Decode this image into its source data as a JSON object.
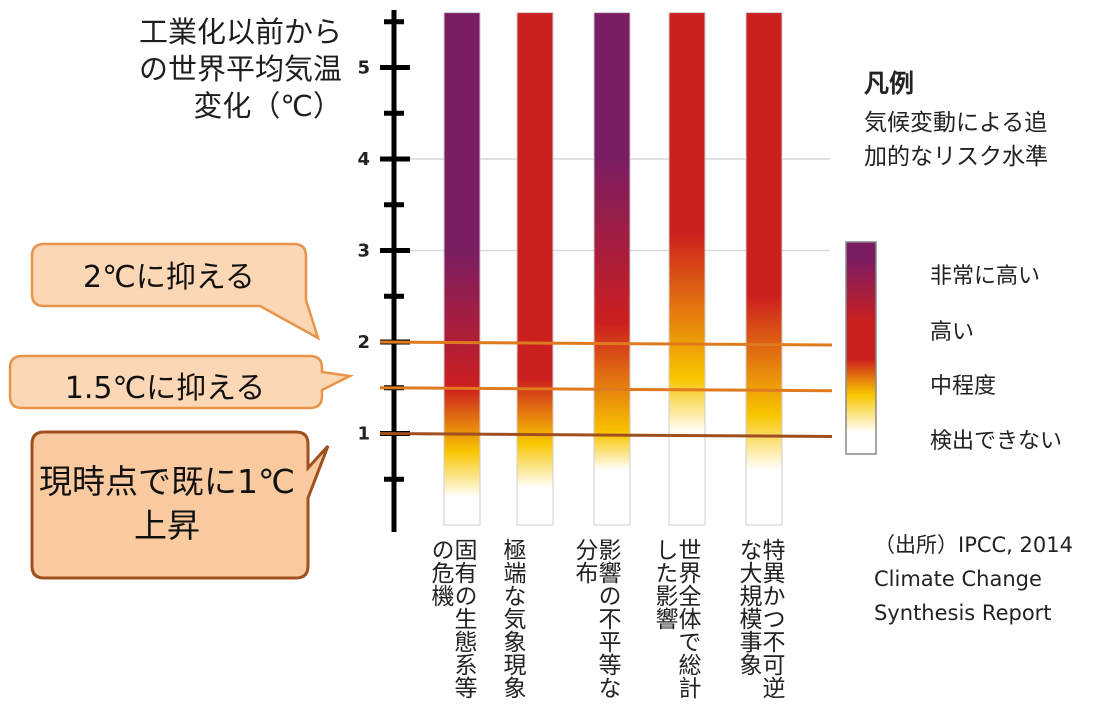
{
  "chart_data": {
    "type": "heatmap",
    "ylabel": "工業化以前からの世界平均気温変化（℃）",
    "yticks": [
      "1",
      "2",
      "3",
      "4",
      "5"
    ],
    "ylim": [
      0,
      5.6
    ],
    "grid": "horizontal dashed at 3 and 4",
    "categories": [
      "固有の生態系等の危機",
      "極端な気象現象",
      "影響の不平等な分布",
      "世界全体で総計した影響",
      "特異かつ不可逆な大規模事象"
    ],
    "risk_levels": [
      "非常に高い",
      "高い",
      "中程度",
      "検出できない"
    ],
    "color_scale": [
      "#7b1d63",
      "#cc1f1f",
      "#f8c600",
      "#ffffff"
    ],
    "transitions": [
      {
        "category": "固有の生態系等の危機",
        "start": 0.3,
        "moderate": 0.8,
        "high": 1.5,
        "very_high": 3.0
      },
      {
        "category": "極端な気象現象",
        "start": 0.4,
        "moderate": 0.9,
        "high": 1.6,
        "very_high": null
      },
      {
        "category": "影響の不平等な分布",
        "start": 0.6,
        "moderate": 1.0,
        "high": 2.2,
        "very_high": 4.0
      },
      {
        "category": "世界全体で総計した影響",
        "start": 1.0,
        "moderate": 1.6,
        "high": 3.2,
        "very_high": null
      },
      {
        "category": "特異かつ不可逆な大規模事象",
        "start": 0.6,
        "moderate": 1.2,
        "high": 2.5,
        "very_high": null
      }
    ],
    "reference_lines": [
      {
        "value": 2.0,
        "label": "2℃に抑える"
      },
      {
        "value": 1.5,
        "label": "1.5℃に抑える"
      },
      {
        "value": 1.0,
        "label": "現時点で既に1℃上昇"
      }
    ],
    "legend": {
      "title": "凡例",
      "subtitle": "気候変動による追加的なリスク水準",
      "placement": "right"
    },
    "source": [
      "（出所）IPCC, 2014",
      "Climate Change",
      "Synthesis Report"
    ]
  },
  "colors": {
    "callout_fill": "#fbd7b5",
    "callout_border": "#e8944a",
    "callout3_fill": "#f9c9a0",
    "callout3_border": "#a0501e",
    "line_orange": "#e07a1f",
    "line_brown": "#a0501e"
  }
}
